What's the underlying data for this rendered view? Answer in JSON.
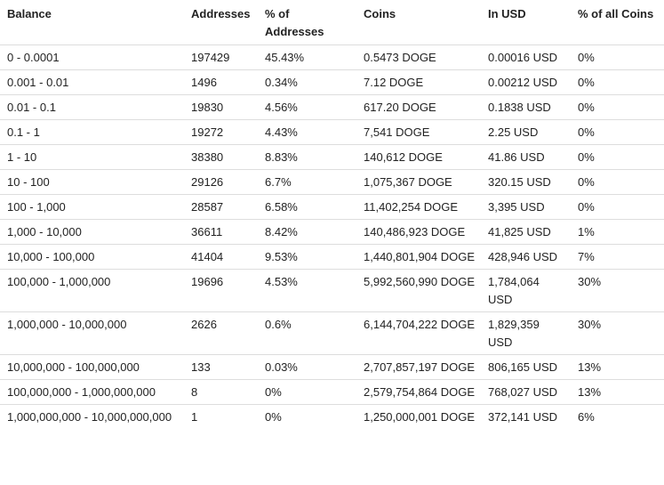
{
  "headers": {
    "balance": "Balance",
    "addresses": "Addresses",
    "pct_addresses": "% of Addresses",
    "coins": "Coins",
    "in_usd": "In USD",
    "pct_all_coins": "% of all Coins"
  },
  "rows": [
    {
      "balance": "0 - 0.0001",
      "addresses": "197429",
      "pct_addresses": "45.43%",
      "coins": "0.5473 DOGE",
      "usd": "0.00016 USD",
      "pct_coins": "0%"
    },
    {
      "balance": "0.001 - 0.01",
      "addresses": "1496",
      "pct_addresses": "0.34%",
      "coins": "7.12 DOGE",
      "usd": "0.00212 USD",
      "pct_coins": "0%"
    },
    {
      "balance": "0.01 - 0.1",
      "addresses": "19830",
      "pct_addresses": "4.56%",
      "coins": "617.20 DOGE",
      "usd": "0.1838 USD",
      "pct_coins": "0%"
    },
    {
      "balance": "0.1 - 1",
      "addresses": "19272",
      "pct_addresses": "4.43%",
      "coins": "7,541 DOGE",
      "usd": "2.25 USD",
      "pct_coins": "0%"
    },
    {
      "balance": "1 - 10",
      "addresses": "38380",
      "pct_addresses": "8.83%",
      "coins": "140,612 DOGE",
      "usd": "41.86 USD",
      "pct_coins": "0%"
    },
    {
      "balance": "10 - 100",
      "addresses": "29126",
      "pct_addresses": "6.7%",
      "coins": "1,075,367 DOGE",
      "usd": "320.15 USD",
      "pct_coins": "0%"
    },
    {
      "balance": "100 - 1,000",
      "addresses": "28587",
      "pct_addresses": "6.58%",
      "coins": "11,402,254 DOGE",
      "usd": "3,395 USD",
      "pct_coins": "0%"
    },
    {
      "balance": "1,000 - 10,000",
      "addresses": "36611",
      "pct_addresses": "8.42%",
      "coins": "140,486,923 DOGE",
      "usd": "41,825 USD",
      "pct_coins": "1%"
    },
    {
      "balance": "10,000 - 100,000",
      "addresses": "41404",
      "pct_addresses": "9.53%",
      "coins": "1,440,801,904 DOGE",
      "usd": "428,946 USD",
      "pct_coins": "7%"
    },
    {
      "balance": "100,000 - 1,000,000",
      "addresses": "19696",
      "pct_addresses": "4.53%",
      "coins": "5,992,560,990 DOGE",
      "usd": "1,784,064 USD",
      "pct_coins": "30%"
    },
    {
      "balance": "1,000,000 - 10,000,000",
      "addresses": "2626",
      "pct_addresses": "0.6%",
      "coins": "6,144,704,222 DOGE",
      "usd": "1,829,359 USD",
      "pct_coins": "30%"
    },
    {
      "balance": "10,000,000 - 100,000,000",
      "addresses": "133",
      "pct_addresses": "0.03%",
      "coins": "2,707,857,197 DOGE",
      "usd": "806,165 USD",
      "pct_coins": "13%"
    },
    {
      "balance": "100,000,000 - 1,000,000,000",
      "addresses": "8",
      "pct_addresses": "0%",
      "coins": "2,579,754,864 DOGE",
      "usd": "768,027 USD",
      "pct_coins": "13%"
    },
    {
      "balance": "1,000,000,000 - 10,000,000,000",
      "addresses": "1",
      "pct_addresses": "0%",
      "coins": "1,250,000,001 DOGE",
      "usd": "372,141 USD",
      "pct_coins": "6%"
    }
  ]
}
